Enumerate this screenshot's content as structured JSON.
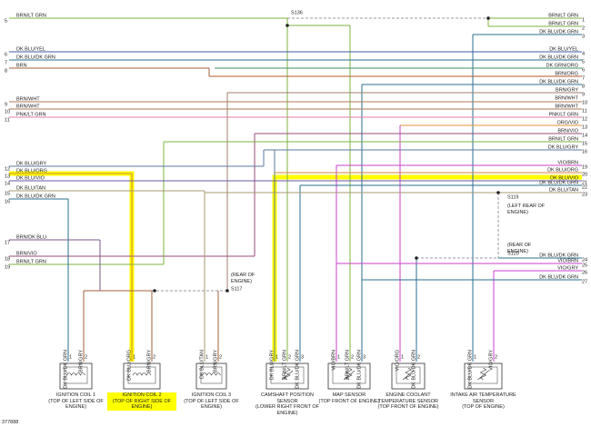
{
  "left_wires": [
    {
      "number": 5,
      "label": "BRN/LT GRN"
    },
    {
      "number": 6,
      "label": "DK BLU/YEL"
    },
    {
      "number": 7,
      "label": "DK BLU/DK GRN"
    },
    {
      "number": 8,
      "label": "BRN"
    },
    {
      "number": 9,
      "label": "BRN/WHT"
    },
    {
      "number": 10,
      "label": "BRN/WHT"
    },
    {
      "number": 11,
      "label": "PNK/LT GRN"
    },
    {
      "number": 12,
      "label": "DK BLU/GRY"
    },
    {
      "number": 13,
      "label": "DK BLU/ORG"
    },
    {
      "number": 14,
      "label": "DK BLU/VIO"
    },
    {
      "number": 15,
      "label": "DK BLU/TAN"
    },
    {
      "number": 16,
      "label": "DK BLU/DK GRN"
    },
    {
      "number": 17,
      "label": "BRN/DK BLU"
    },
    {
      "number": 18,
      "label": "BRN/VIO"
    },
    {
      "number": 19,
      "label": "BRN/LT GRN"
    }
  ],
  "right_wires": [
    {
      "number": 1,
      "label": "BRN/LT GRN"
    },
    {
      "number": 2,
      "label": "BRN/LT GRN"
    },
    {
      "number": 3,
      "label": "DK BLU/DK GRN"
    },
    {
      "number": 4,
      "label": "DK BLU/YEL"
    },
    {
      "number": 5,
      "label": "DK BLU/DK GRN"
    },
    {
      "number": 6,
      "label": "DK GRN/ORG"
    },
    {
      "number": 7,
      "label": "BRN/ORG"
    },
    {
      "number": 8,
      "label": "DK BLU/DK GRN"
    },
    {
      "number": 9,
      "label": "BRN/GRY"
    },
    {
      "number": 10,
      "label": "BRN/WHT"
    },
    {
      "number": 11,
      "label": "BRN/WHT"
    },
    {
      "number": 12,
      "label": "PNK/LT GRN"
    },
    {
      "number": 13,
      "label": "ORG/VIO"
    },
    {
      "number": 14,
      "label": "BRN/VIO"
    },
    {
      "number": 15,
      "label": "BRN/LT GRN"
    },
    {
      "number": 16,
      "label": "DK BLU/GRY"
    },
    {
      "number": 19,
      "label": "VIO/BRN"
    },
    {
      "number": 20,
      "label": "DK BLU/ORG"
    },
    {
      "number": 21,
      "label": "DK BLU/VIO"
    },
    {
      "number": 22,
      "label": "DK BLU/DK GRN"
    },
    {
      "number": 23,
      "label": "DK BLU/TAN"
    },
    {
      "number": 24,
      "label": "DK BLU/DK GRN"
    },
    {
      "number": 25,
      "label": "VIO/BRN"
    },
    {
      "number": 26,
      "label": "VIO/GRY"
    },
    {
      "number": 27,
      "label": "DK BLU/DK GRN"
    }
  ],
  "splices": [
    {
      "id": "S136"
    },
    {
      "id": "S117",
      "location": "(REAR OF ENGINE)"
    },
    {
      "id": "S119",
      "location": "(LEFT REAR OF ENGINE)"
    },
    {
      "id": "S120",
      "location": "(REAR OF ENGINE)"
    }
  ],
  "components": [
    {
      "name": "IGNITION COIL 1",
      "location": "(TOP OF LEFT SIDE OF ENGINE)",
      "pins": [
        {
          "number": 1,
          "wire": "DK BLU/DK GRN"
        },
        {
          "number": 2,
          "wire": "BRN/GRY"
        }
      ]
    },
    {
      "name": "IGNITION COIL 2",
      "location": "(TOP OF RIGHT SIDE OF ENGINE)",
      "pins": [
        {
          "number": 1,
          "wire": "DK BLU/ORG"
        },
        {
          "number": 2,
          "wire": "BRN/GRY"
        }
      ]
    },
    {
      "name": "IGNITION COIL 3",
      "location": "(TOP OF LEFT SIDE OF ENGINE)",
      "pins": [
        {
          "number": 1,
          "wire": "DK BLU/TAN"
        },
        {
          "number": 2,
          "wire": "BRN/GRY"
        }
      ]
    },
    {
      "name": "CAMSHAFT POSITION SENSOR",
      "location": "(LOWER RIGHT FRONT OF ENGINE)",
      "pins": [
        {
          "number": 1,
          "wire": "DK BLU/GRY"
        },
        {
          "number": 2,
          "wire": "BRN/LT GRN"
        },
        {
          "number": 3,
          "wire": "DK BLU/DK GRN"
        }
      ]
    },
    {
      "name": "MAP SENSOR",
      "location": "(TOP FRONT OF ENGINE)",
      "pins": [
        {
          "number": 1,
          "wire": "VIO/BRN"
        },
        {
          "number": 2,
          "wire": "BRN/LT GRN"
        },
        {
          "number": 3,
          "wire": "DK BLU/DK GRN"
        }
      ]
    },
    {
      "name": "ENGINE COOLANT TEMPERATURE SENSOR",
      "location": "(TOP FRONT OF ENGINE)",
      "pins": [
        {
          "number": 1,
          "wire": "VIO/ORG"
        },
        {
          "number": 2,
          "wire": "DK BLU/DK GRN"
        }
      ]
    },
    {
      "name": "INTAKE AIR TEMPERATURE SENSOR",
      "location": "(TOP OF ENGINE)",
      "pins": [
        {
          "number": 1,
          "wire": "DK BLU/DK GRN"
        },
        {
          "number": 2,
          "wire": "VIO/GRY"
        }
      ]
    }
  ],
  "figure_id": "377888"
}
